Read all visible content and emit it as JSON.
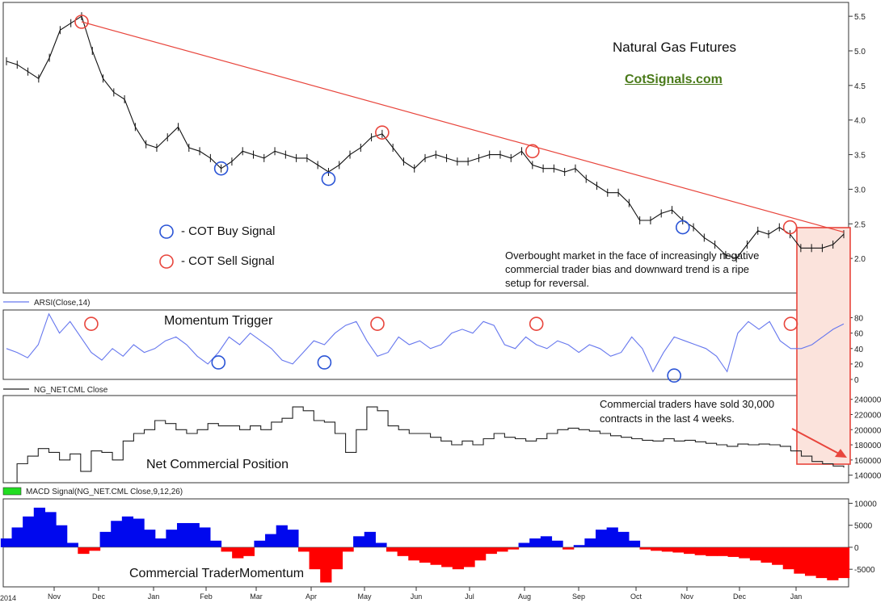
{
  "colors": {
    "price": "#111111",
    "trendline": "#e8453c",
    "buy": "#2a54d6",
    "sell": "#e8453c",
    "arsi": "#6677ee",
    "net": "#222222",
    "macd_pos": "#0008ee",
    "macd_neg": "#ff0000",
    "highlight_fill": "#fbe3dc",
    "highlight_border": "#e8453c",
    "link": "#4a7a1a",
    "legend_green": "#22dd22"
  },
  "annotations": {
    "title": "Natural Gas Futures",
    "site": "CotSignals.com",
    "buy_legend": "- COT Buy Signal",
    "sell_legend": "- COT Sell Signal",
    "overbought_note": "Overbought market in the face of increasingly negative commercial trader bias and downward trend is a ripe setup for reversal.",
    "momentum_trigger": "Momentum Trigger",
    "sold_note": "Commercial traders have sold 30,000 contracts in the last 4 weeks.",
    "net_position": "Net Commercial Position",
    "trader_momentum": "Commercial TraderMomentum"
  },
  "chart_data": [
    {
      "type": "line",
      "panel": "price",
      "series": [
        {
          "values": [
            4.85,
            4.8,
            4.7,
            4.6,
            4.9,
            5.3,
            5.4,
            5.5,
            5.0,
            4.6,
            4.4,
            4.3,
            3.9,
            3.65,
            3.6,
            3.75,
            3.9,
            3.6,
            3.55,
            3.45,
            3.3,
            3.4,
            3.55,
            3.5,
            3.45,
            3.55,
            3.5,
            3.45,
            3.45,
            3.35,
            3.25,
            3.35,
            3.5,
            3.6,
            3.75,
            3.8,
            3.6,
            3.4,
            3.3,
            3.45,
            3.5,
            3.45,
            3.4,
            3.4,
            3.45,
            3.5,
            3.5,
            3.45,
            3.55,
            3.35,
            3.3,
            3.3,
            3.25,
            3.3,
            3.15,
            3.05,
            2.95,
            2.95,
            2.8,
            2.55,
            2.55,
            2.65,
            2.7,
            2.55,
            2.45,
            2.3,
            2.2,
            2.05,
            2.0,
            2.2,
            2.4,
            2.35,
            2.45,
            2.35,
            2.15,
            2.15,
            2.15,
            2.2,
            2.35
          ]
        }
      ],
      "ylim": [
        1.5,
        5.7
      ],
      "y_ticks": [
        "5.5",
        "5.0",
        "4.5",
        "4.0",
        "3.5",
        "3.0",
        "2.5",
        "2.0"
      ],
      "trendline": [
        [
          7,
          5.42
        ],
        [
          78,
          2.38
        ]
      ],
      "buy_signals": [
        [
          20,
          3.3
        ],
        [
          30,
          3.15
        ],
        [
          63,
          2.45
        ]
      ],
      "sell_signals": [
        [
          7,
          5.42
        ],
        [
          35,
          3.82
        ],
        [
          49,
          3.55
        ],
        [
          73,
          2.45
        ]
      ]
    },
    {
      "type": "line",
      "panel": "arsi",
      "legend": "ARSI(Close,14)",
      "series": [
        {
          "name": "ARSI(Close,14)",
          "values": [
            40,
            35,
            28,
            45,
            85,
            60,
            75,
            55,
            35,
            25,
            40,
            30,
            45,
            35,
            40,
            50,
            55,
            45,
            30,
            20,
            35,
            55,
            45,
            60,
            50,
            40,
            25,
            20,
            35,
            50,
            45,
            60,
            70,
            75,
            50,
            30,
            35,
            55,
            45,
            50,
            40,
            45,
            60,
            65,
            60,
            75,
            70,
            45,
            40,
            55,
            45,
            40,
            50,
            45,
            35,
            45,
            40,
            30,
            35,
            55,
            40,
            10,
            35,
            55,
            50,
            45,
            40,
            30,
            10,
            60,
            75,
            65,
            75,
            50,
            40,
            40,
            45,
            55,
            65,
            72
          ]
        }
      ],
      "ylim": [
        0,
        90
      ],
      "y_ticks": [
        "80",
        "60",
        "40",
        "20",
        "0"
      ],
      "buy_signals": [
        [
          20,
          22
        ],
        [
          30,
          22
        ],
        [
          63,
          5
        ]
      ],
      "sell_signals": [
        [
          8,
          72
        ],
        [
          35,
          72
        ],
        [
          50,
          72
        ],
        [
          74,
          72
        ]
      ]
    },
    {
      "type": "line",
      "panel": "net",
      "legend": "NG_NET.CML Close",
      "series": [
        {
          "name": "NG_NET.CML Close",
          "values": [
            130000,
            155000,
            165000,
            175000,
            170000,
            160000,
            168000,
            145000,
            172000,
            170000,
            160000,
            185000,
            195000,
            200000,
            212000,
            208000,
            200000,
            195000,
            200000,
            208000,
            205000,
            205000,
            200000,
            205000,
            200000,
            210000,
            215000,
            230000,
            225000,
            212000,
            210000,
            195000,
            170000,
            200000,
            230000,
            225000,
            205000,
            200000,
            195000,
            195000,
            190000,
            185000,
            180000,
            185000,
            180000,
            188000,
            195000,
            190000,
            188000,
            185000,
            188000,
            195000,
            200000,
            202000,
            200000,
            198000,
            195000,
            192000,
            190000,
            188000,
            186000,
            185000,
            188000,
            185000,
            186000,
            184000,
            182000,
            180000,
            178000,
            181000,
            180000,
            181000,
            180000,
            178000,
            172000,
            165000,
            158000,
            155000,
            152000,
            150000
          ]
        }
      ],
      "ylim": [
        130000,
        245000
      ],
      "y_ticks": [
        "240000",
        "220000",
        "200000",
        "180000",
        "160000",
        "140000"
      ]
    },
    {
      "type": "bar",
      "panel": "macd",
      "legend": "MACD Signal(NG_NET.CML Close,9,12,26)",
      "series": [
        {
          "name": "MACD Signal(NG_NET.CML Close,9,12,26)",
          "values": [
            2000,
            4500,
            7000,
            9000,
            8000,
            5000,
            1000,
            -1500,
            -800,
            3500,
            6000,
            7000,
            6500,
            4000,
            2000,
            4000,
            5500,
            5500,
            4500,
            1500,
            -1000,
            -2500,
            -2000,
            1500,
            3000,
            5000,
            4000,
            -1000,
            -5000,
            -8000,
            -5000,
            -1000,
            2500,
            3500,
            1000,
            -1000,
            -2000,
            -3000,
            -3500,
            -4000,
            -4500,
            -5000,
            -4500,
            -3000,
            -1500,
            -1000,
            -500,
            1000,
            2000,
            2500,
            1500,
            -500,
            500,
            2000,
            4000,
            4500,
            3500,
            1500,
            -500,
            -800,
            -1000,
            -1200,
            -1500,
            -1800,
            -2000,
            -2000,
            -2200,
            -2500,
            -3000,
            -3500,
            -4000,
            -5000,
            -6000,
            -6500,
            -7000,
            -7500,
            -7000
          ]
        }
      ],
      "ylim": [
        -9000,
        11000
      ],
      "y_ticks": [
        "10000",
        "5000",
        "0",
        "-5000"
      ]
    }
  ],
  "x_axis": {
    "year_label": "2014",
    "months": [
      "Nov",
      "Dec",
      "Jan",
      "Feb",
      "Mar",
      "Apr",
      "May",
      "Jun",
      "Jul",
      "Aug",
      "Sep",
      "Oct",
      "Nov",
      "Dec",
      "Jan"
    ]
  }
}
